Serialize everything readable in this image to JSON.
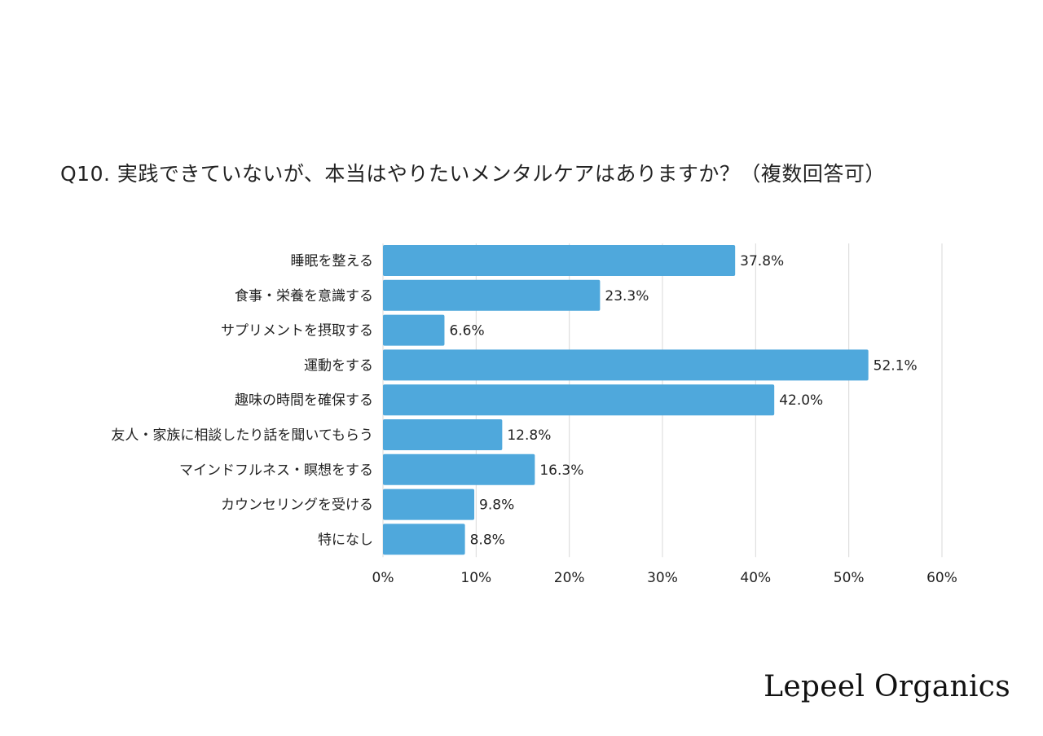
{
  "chart_data": {
    "type": "bar",
    "orientation": "horizontal",
    "title": "Q10. 実践できていないが、本当はやりたいメンタルケアはありますか？（複数回答可）",
    "categories": [
      "睡眠を整える",
      "食事・栄養を意識する",
      "サプリメントを摂取する",
      "運動をする",
      "趣味の時間を確保する",
      "友人・家族に相談したり話を聞いてもらう",
      "マインドフルネス・瞑想をする",
      "カウンセリングを受ける",
      "特になし"
    ],
    "values": [
      37.8,
      23.3,
      6.6,
      52.1,
      42.0,
      12.8,
      16.3,
      9.8,
      8.8
    ],
    "data_labels": [
      "37.8%",
      "23.3%",
      "6.6%",
      "52.1%",
      "42.0%",
      "12.8%",
      "16.3%",
      "9.8%",
      "8.8%"
    ],
    "xlim": [
      0,
      60
    ],
    "x_ticks": [
      0,
      10,
      20,
      30,
      40,
      50,
      60
    ],
    "x_tick_labels": [
      "0%",
      "10%",
      "20%",
      "30%",
      "40%",
      "50%",
      "60%"
    ],
    "grid": true,
    "bar_color": "#4fa8dc",
    "grid_color": "#d9d9d9"
  },
  "brand": "Lepeel Organics"
}
